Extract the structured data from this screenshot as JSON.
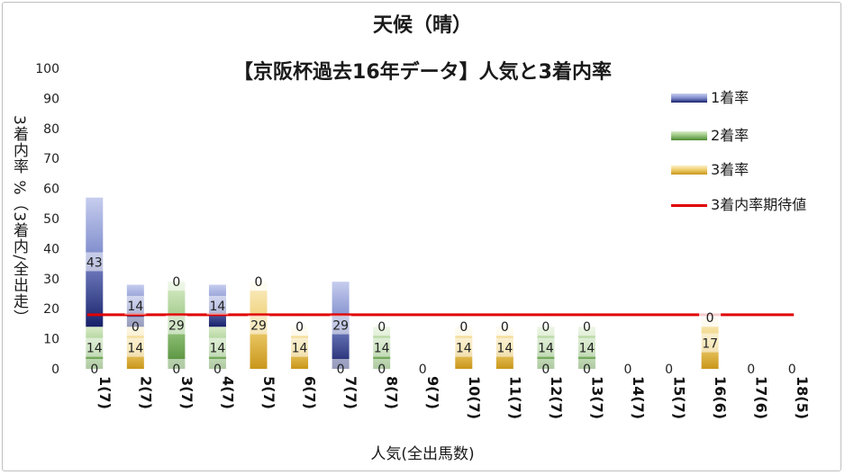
{
  "chart_data": {
    "type": "bar",
    "stacked": true,
    "title": "天候（晴）",
    "subtitle": "【京阪杯過去16年データ】人気と3着内率",
    "xlabel": "人気(全出馬数)",
    "ylabel": "3着内率 %（3着内/全出走）",
    "ylim": [
      0,
      100
    ],
    "yticks": [
      0,
      10,
      20,
      30,
      40,
      50,
      60,
      70,
      80,
      90,
      100
    ],
    "grid": false,
    "legend_position": "right",
    "categories": [
      "1(7)",
      "2(7)",
      "3(7)",
      "4(7)",
      "5(7)",
      "6(7)",
      "7(7)",
      "8(7)",
      "9(7)",
      "10(7)",
      "11(7)",
      "12(7)",
      "13(7)",
      "14(7)",
      "15(7)",
      "16(6)",
      "17(6)",
      "18(5)"
    ],
    "series": [
      {
        "name": "3着率",
        "color": "#d6a520",
        "values": [
          0,
          14,
          0,
          0,
          29,
          14,
          0,
          0,
          0,
          14,
          14,
          0,
          0,
          0,
          0,
          17,
          0,
          0
        ]
      },
      {
        "name": "2着率",
        "color": "#5a9a3c",
        "values": [
          14,
          0,
          29,
          14,
          0,
          0,
          0,
          14,
          0,
          0,
          0,
          14,
          14,
          0,
          0,
          0,
          0,
          0
        ]
      },
      {
        "name": "1着率",
        "color": "#2b3a8c",
        "values": [
          43,
          14,
          0,
          14,
          0,
          0,
          29,
          0,
          0,
          0,
          0,
          0,
          0,
          0,
          0,
          0,
          0,
          0
        ]
      }
    ],
    "expected_line": {
      "name": "3着内率期待値",
      "color": "#e00000",
      "value": 18
    }
  },
  "legend": [
    {
      "label": "1着率",
      "color": "#2b3a8c"
    },
    {
      "label": "2着率",
      "color": "#5a9a3c"
    },
    {
      "label": "3着率",
      "color": "#d6a520"
    },
    {
      "label": "3着内率期待値",
      "color": "#e00000"
    }
  ]
}
